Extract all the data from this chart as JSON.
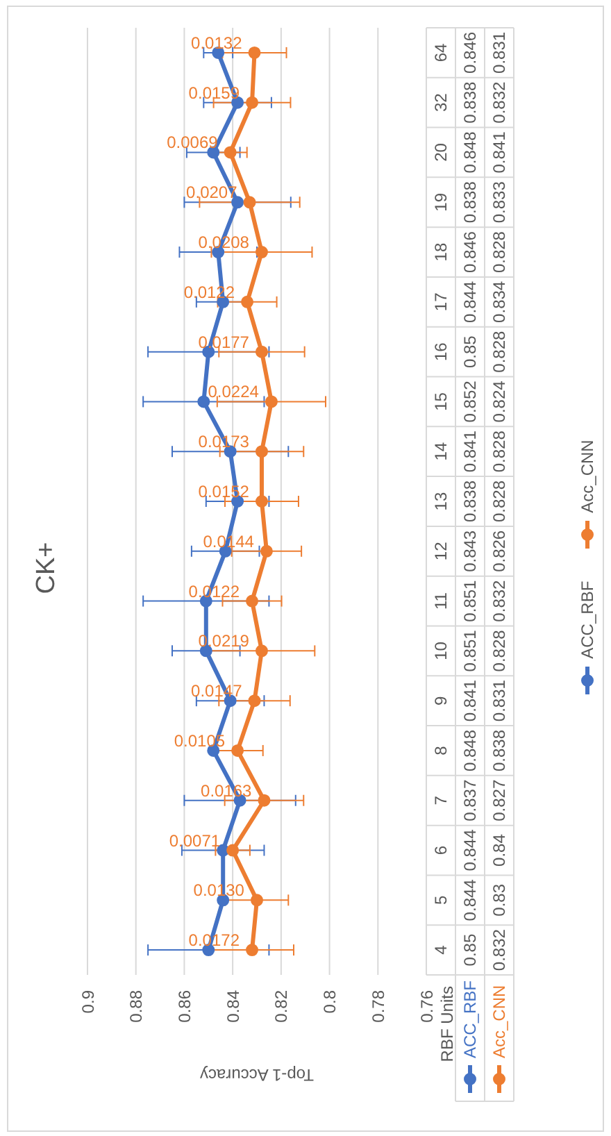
{
  "chart_data": {
    "type": "line",
    "orientation": "horizontal",
    "title": "CK+",
    "xlabel": "Top-1 Accuracy",
    "ylabel": "RBF Units",
    "categories": [
      "64",
      "32",
      "20",
      "19",
      "18",
      "17",
      "16",
      "15",
      "14",
      "13",
      "12",
      "11",
      "10",
      "9",
      "8",
      "7",
      "6",
      "5",
      "4"
    ],
    "series": [
      {
        "name": "ACC_RBF",
        "color": "#4472c4",
        "values": [
          0.846,
          0.838,
          0.848,
          0.838,
          0.846,
          0.844,
          0.85,
          0.852,
          0.841,
          0.838,
          0.843,
          0.851,
          0.851,
          0.841,
          0.848,
          0.837,
          0.844,
          0.844,
          0.85
        ],
        "errors": [
          0.006,
          0.014,
          0.011,
          0.022,
          0.016,
          0.011,
          0.025,
          0.025,
          0.024,
          0.013,
          0.014,
          0.026,
          0.014,
          0.014,
          null,
          0.023,
          0.017,
          null,
          0.025
        ]
      },
      {
        "name": "Acc_CNN",
        "color": "#ed7d31",
        "values": [
          0.831,
          0.832,
          0.841,
          0.833,
          0.828,
          0.834,
          0.828,
          0.824,
          0.828,
          0.828,
          0.826,
          0.832,
          0.828,
          0.831,
          0.838,
          0.827,
          0.84,
          0.83,
          0.832
        ],
        "errors": [
          0.0132,
          0.0159,
          0.0069,
          0.0207,
          0.0208,
          0.0122,
          0.0177,
          0.0224,
          0.0173,
          0.0152,
          0.0144,
          0.0122,
          0.0219,
          0.0147,
          0.0105,
          0.0163,
          0.0071,
          0.013,
          0.0172
        ]
      }
    ],
    "xlim": [
      0.9,
      0.76
    ],
    "xticks": [
      0.9,
      0.88,
      0.86,
      0.84,
      0.82,
      0.8,
      0.78,
      0.76
    ],
    "grid": "x",
    "legend": "right",
    "marker": "circle",
    "line_style": "solid",
    "data_labels": true,
    "annotations": [
      {
        "text": "0.0132",
        "x": 0.831,
        "y": "64"
      },
      {
        "text": "0.0159",
        "x": 0.832,
        "y": "32"
      },
      {
        "text": "0.0069",
        "x": 0.841,
        "y": "20"
      },
      {
        "text": "0.0207",
        "x": 0.833,
        "y": "19"
      },
      {
        "text": "0.0208",
        "x": 0.828,
        "y": "18"
      },
      {
        "text": "0.0122",
        "x": 0.834,
        "y": "17"
      },
      {
        "text": "0.0177",
        "x": 0.828,
        "y": "16"
      },
      {
        "text": "0.0224",
        "x": 0.824,
        "y": "15"
      },
      {
        "text": "0.0173",
        "x": 0.828,
        "y": "14"
      },
      {
        "text": "0.0152",
        "x": 0.828,
        "y": "13"
      },
      {
        "text": "0.0144",
        "x": 0.826,
        "y": "12"
      },
      {
        "text": "0.0122",
        "x": 0.832,
        "y": "11"
      },
      {
        "text": "0.0219",
        "x": 0.828,
        "y": "10"
      },
      {
        "text": "0.0147",
        "x": 0.831,
        "y": "9"
      },
      {
        "text": "0.0105",
        "x": 0.838,
        "y": "8"
      },
      {
        "text": "0.0163",
        "x": 0.827,
        "y": "7"
      },
      {
        "text": "0.0071",
        "x": 0.84,
        "y": "6"
      },
      {
        "text": "0.0130",
        "x": 0.83,
        "y": "5"
      },
      {
        "text": "0.0172",
        "x": 0.832,
        "y": "4"
      }
    ]
  }
}
